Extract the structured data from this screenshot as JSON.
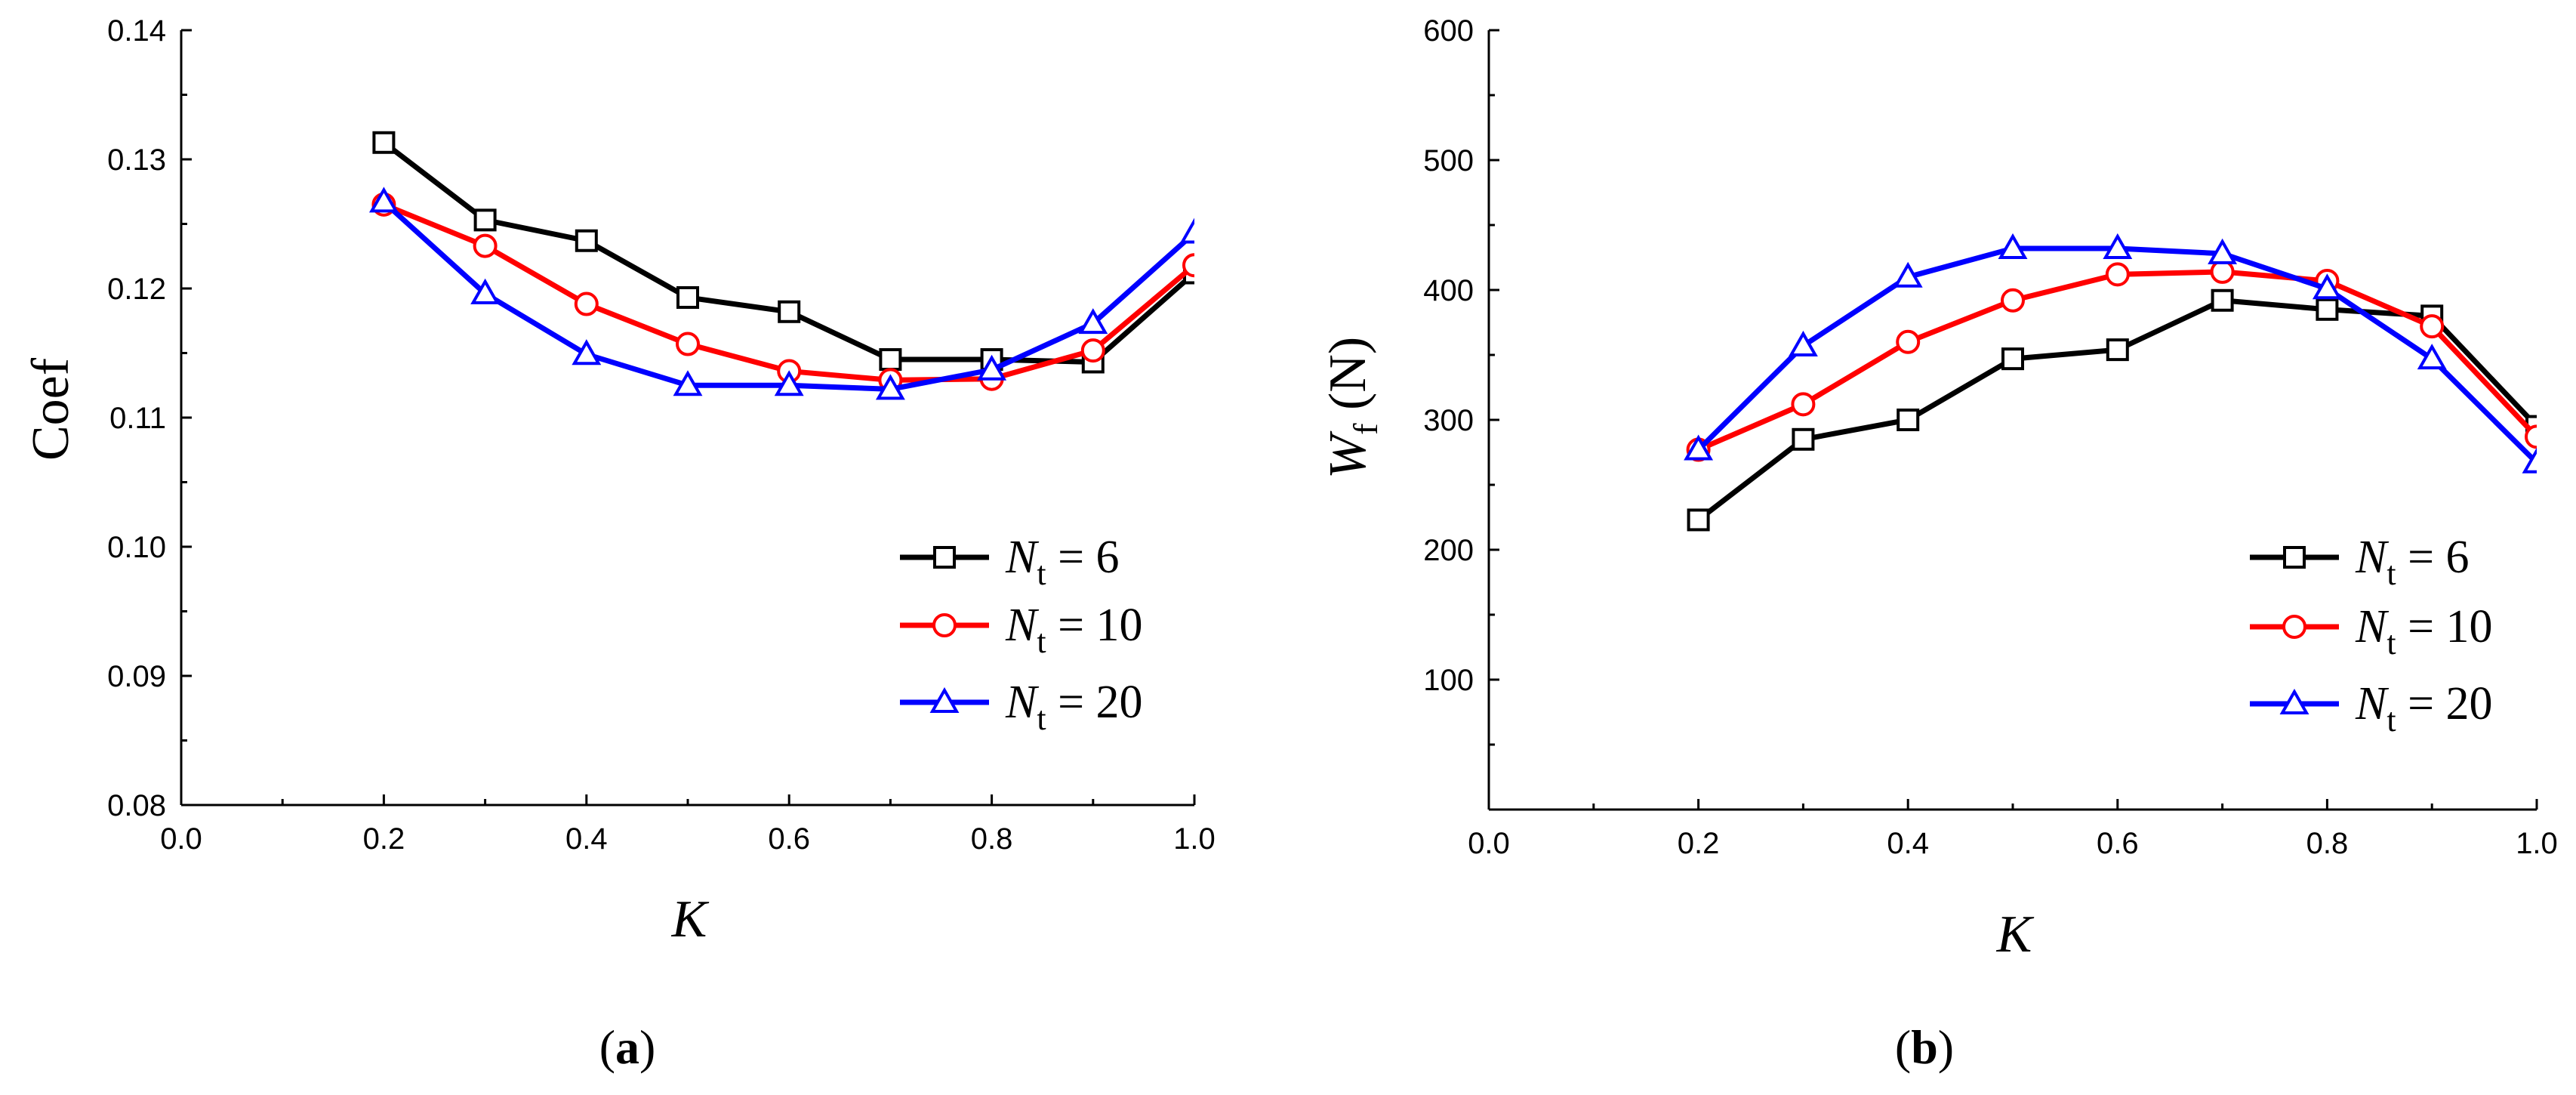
{
  "chart_data": [
    {
      "type": "line",
      "panel_label": "a",
      "xlabel": "K",
      "ylabel": "Coef",
      "xlim": [
        0.0,
        1.0
      ],
      "ylim": [
        0.08,
        0.14
      ],
      "xticks": [
        "0.0",
        "0.2",
        "0.4",
        "0.6",
        "0.8",
        "1.0"
      ],
      "yticks": [
        "0.08",
        "0.09",
        "0.10",
        "0.11",
        "0.12",
        "0.13",
        "0.14"
      ],
      "x": [
        0.2,
        0.3,
        0.4,
        0.5,
        0.6,
        0.7,
        0.8,
        0.9,
        1.0
      ],
      "legend_position": "bottom-right",
      "series": [
        {
          "name_symbol": "N",
          "name_sub": "t",
          "name_rest": " = 6",
          "marker": "square",
          "color": "#000000",
          "values": [
            0.1313,
            0.1253,
            0.1237,
            0.1193,
            0.1182,
            0.1145,
            0.1145,
            0.1143,
            0.1212
          ]
        },
        {
          "name_symbol": "N",
          "name_sub": "t",
          "name_rest": "  = 10",
          "marker": "circle",
          "color": "#ff0000",
          "values": [
            0.1265,
            0.1233,
            0.1188,
            0.1157,
            0.1136,
            0.1129,
            0.113,
            0.1152,
            0.1218
          ]
        },
        {
          "name_symbol": "N",
          "name_sub": "t",
          "name_rest": "  = 20",
          "marker": "triangle",
          "color": "#0000ff",
          "values": [
            0.1267,
            0.1196,
            0.1149,
            0.1125,
            0.1125,
            0.1122,
            0.1137,
            0.1173,
            0.1243
          ]
        }
      ]
    },
    {
      "type": "line",
      "panel_label": "b",
      "xlabel": "K",
      "ylabel_symbol": "W",
      "ylabel_sub": "f",
      "ylabel_unit": " (N)",
      "xlim": [
        0.0,
        1.0
      ],
      "ylim": [
        0,
        600
      ],
      "xticks": [
        "0.0",
        "0.2",
        "0.4",
        "0.6",
        "0.8",
        "1.0"
      ],
      "yticks": [
        "100",
        "200",
        "300",
        "400",
        "500",
        "600"
      ],
      "x": [
        0.2,
        0.3,
        0.4,
        0.5,
        0.6,
        0.7,
        0.8,
        0.9,
        1.0
      ],
      "legend_position": "bottom-right",
      "series": [
        {
          "name_symbol": "N",
          "name_sub": "t",
          "name_rest": " = 6",
          "marker": "square",
          "color": "#000000",
          "values": [
            223,
            285,
            300,
            347,
            354,
            392,
            385,
            380,
            295
          ]
        },
        {
          "name_symbol": "N",
          "name_sub": "t",
          "name_rest": "  = 10",
          "marker": "circle",
          "color": "#ff0000",
          "values": [
            277,
            312,
            360,
            392,
            412,
            414,
            407,
            372,
            287
          ]
        },
        {
          "name_symbol": "N",
          "name_sub": "t",
          "name_rest": "  = 20",
          "marker": "triangle",
          "color": "#0000ff",
          "values": [
            277,
            357,
            410,
            432,
            432,
            428,
            401,
            347,
            267
          ]
        }
      ]
    }
  ]
}
